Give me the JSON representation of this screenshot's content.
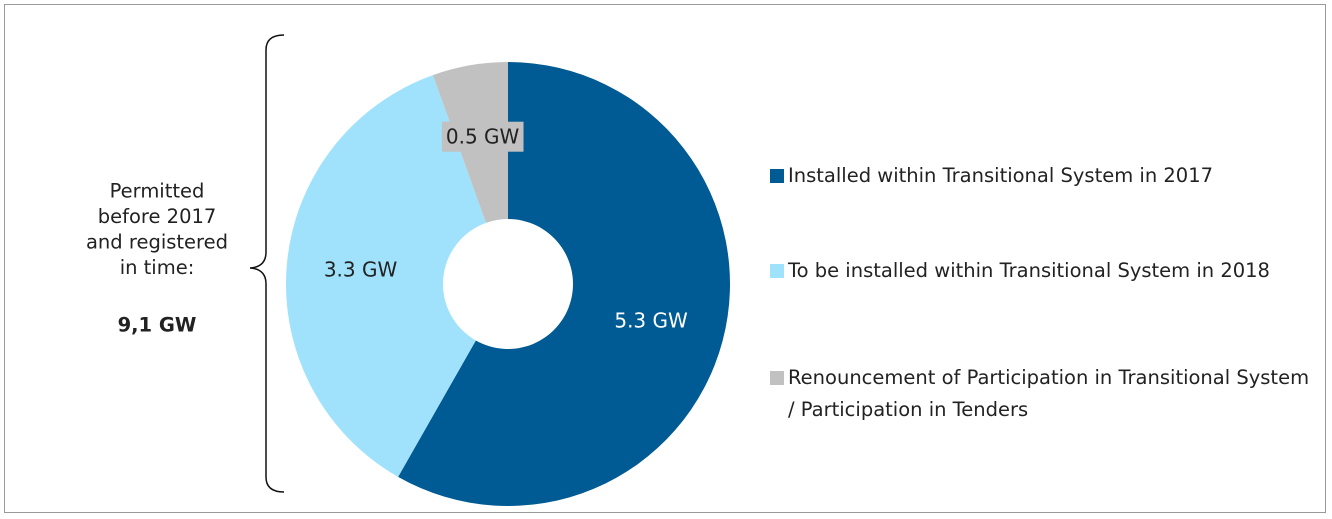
{
  "chart_data": {
    "type": "donut",
    "annotation_lines": [
      "Permitted",
      "before 2017",
      "and registered",
      "in time:"
    ],
    "annotation_total": "9,1 GW",
    "categories": [
      "Installed within Transitional System in 2017",
      "To be installed within Transitional System in 2018",
      "Renouncement of Participation in Transitional System / Participation in Tenders"
    ],
    "values": [
      5.3,
      3.3,
      0.5
    ],
    "value_labels": [
      "5.3 GW",
      "3.3 GW",
      "0.5 GW"
    ],
    "colors": [
      "#005a94",
      "#a0e2fb",
      "#c1c1c1"
    ],
    "label_colors": [
      "#ffffff",
      "#222222",
      "#222222"
    ],
    "legend": "right"
  }
}
